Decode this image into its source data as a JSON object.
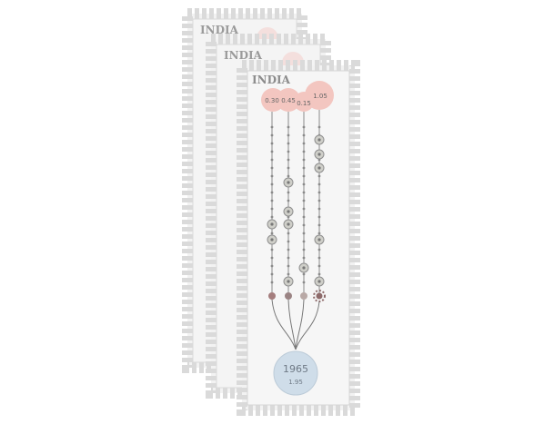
{
  "stamps": [
    {
      "country": "INDIA"
    },
    {
      "country": "INDIA"
    },
    {
      "country": "INDIA"
    }
  ],
  "front_stamp": {
    "top_values": [
      "0.30",
      "0.45",
      "0.15",
      "1.05"
    ],
    "year": "1965",
    "year_value": "1.95"
  },
  "colors": {
    "stamp_edge": "#d9d9d9",
    "stamp_paper": "#f2f2f2",
    "bubble": "#f3c6c0",
    "year_bubble": "#cfdde9",
    "line": "#8a8a8a"
  }
}
